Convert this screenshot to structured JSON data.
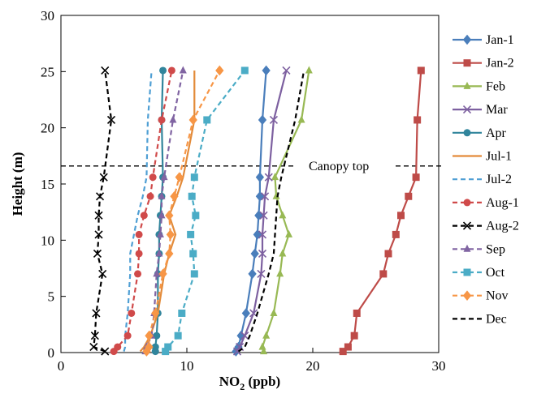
{
  "chart_data": {
    "type": "line",
    "title": "",
    "xlabel": "NO",
    "xlabel_sub": "2",
    "xlabel_unit": "(ppb)",
    "ylabel": "Height  (m)",
    "xlim": [
      0,
      30
    ],
    "ylim": [
      0,
      30
    ],
    "x_ticks": [
      0,
      10,
      20,
      30
    ],
    "y_ticks": [
      0,
      5,
      10,
      15,
      20,
      25,
      30
    ],
    "grid": false,
    "legend_position": "right",
    "heights": [
      0.1,
      0.5,
      1.5,
      3.5,
      7.0,
      8.8,
      10.5,
      12.2,
      13.9,
      15.6,
      20.7,
      25.1
    ],
    "annotations": [
      {
        "text": "Canopy top",
        "y": 16.6
      }
    ],
    "series": [
      {
        "name": "Jan-1",
        "color": "#4a7ebb",
        "marker": "diamond",
        "dash": "solid",
        "values": [
          13.9,
          14.1,
          14.3,
          14.7,
          15.2,
          15.4,
          15.6,
          15.7,
          15.8,
          15.8,
          16.0,
          16.3
        ]
      },
      {
        "name": "Jan-2",
        "color": "#be4b48",
        "marker": "square",
        "dash": "solid",
        "values": [
          22.4,
          22.8,
          23.3,
          23.5,
          25.6,
          26.0,
          26.6,
          27.0,
          27.6,
          28.2,
          28.3,
          28.6
        ]
      },
      {
        "name": "Feb",
        "color": "#98b954",
        "marker": "triangle",
        "dash": "solid",
        "values": [
          16.1,
          16.0,
          16.3,
          16.9,
          17.4,
          17.6,
          18.1,
          17.6,
          17.1,
          17.0,
          19.1,
          19.7
        ]
      },
      {
        "name": "Mar",
        "color": "#7d60a0",
        "marker": "x",
        "dash": "solid",
        "values": [
          14.0,
          14.2,
          14.6,
          15.3,
          15.9,
          16.0,
          16.0,
          16.1,
          16.2,
          16.5,
          16.9,
          17.9
        ]
      },
      {
        "name": "Apr",
        "color": "#31859c",
        "marker": "circle",
        "dash": "solid",
        "values": [
          7.5,
          7.5,
          7.6,
          7.7,
          7.7,
          7.8,
          7.8,
          7.9,
          8.0,
          8.1,
          8.0,
          8.1
        ]
      },
      {
        "name": "Jul-1",
        "color": "#e38b3a",
        "marker": "none",
        "dash": "solid",
        "values": [
          6.3,
          6.6,
          7.1,
          7.7,
          8.2,
          8.6,
          9.1,
          8.6,
          9.2,
          9.7,
          10.6,
          10.6
        ]
      },
      {
        "name": "Jul-2",
        "color": "#4f9fd4",
        "marker": "none",
        "dash": "dashed",
        "values": [
          5.0,
          5.1,
          5.1,
          5.3,
          5.5,
          5.5,
          5.8,
          6.1,
          6.5,
          6.8,
          6.9,
          7.2
        ]
      },
      {
        "name": "Aug-1",
        "color": "#d04a4a",
        "marker": "circle",
        "dash": "dashed",
        "values": [
          4.2,
          4.5,
          5.3,
          5.6,
          6.1,
          6.2,
          6.2,
          6.6,
          7.1,
          7.3,
          8.0,
          8.8
        ]
      },
      {
        "name": "Aug-2",
        "color": "#000000",
        "marker": "x",
        "dash": "dashed",
        "values": [
          3.5,
          2.6,
          2.7,
          2.8,
          3.3,
          2.9,
          3.0,
          3.0,
          3.1,
          3.4,
          4.0,
          3.5
        ]
      },
      {
        "name": "Sep",
        "color": "#8064a2",
        "marker": "triangle",
        "dash": "dashed",
        "values": [
          6.7,
          6.8,
          7.2,
          7.4,
          7.6,
          7.8,
          7.9,
          8.0,
          8.0,
          8.2,
          8.9,
          9.7
        ]
      },
      {
        "name": "Oct",
        "color": "#4bacc6",
        "marker": "square",
        "dash": "dashed",
        "values": [
          8.3,
          8.5,
          9.3,
          9.6,
          10.6,
          10.5,
          10.3,
          10.7,
          10.4,
          10.6,
          11.6,
          14.6
        ]
      },
      {
        "name": "Nov",
        "color": "#f79646",
        "marker": "diamond",
        "dash": "dashed",
        "values": [
          6.8,
          7.0,
          7.0,
          7.5,
          8.1,
          8.6,
          8.7,
          8.6,
          9.0,
          9.4,
          10.5,
          12.6
        ]
      },
      {
        "name": "Dec",
        "color": "#000000",
        "marker": "none",
        "dash": "dashed",
        "values": [
          14.1,
          14.6,
          15.0,
          15.6,
          16.5,
          16.9,
          17.0,
          17.1,
          17.2,
          17.5,
          18.6,
          19.3
        ]
      }
    ]
  }
}
